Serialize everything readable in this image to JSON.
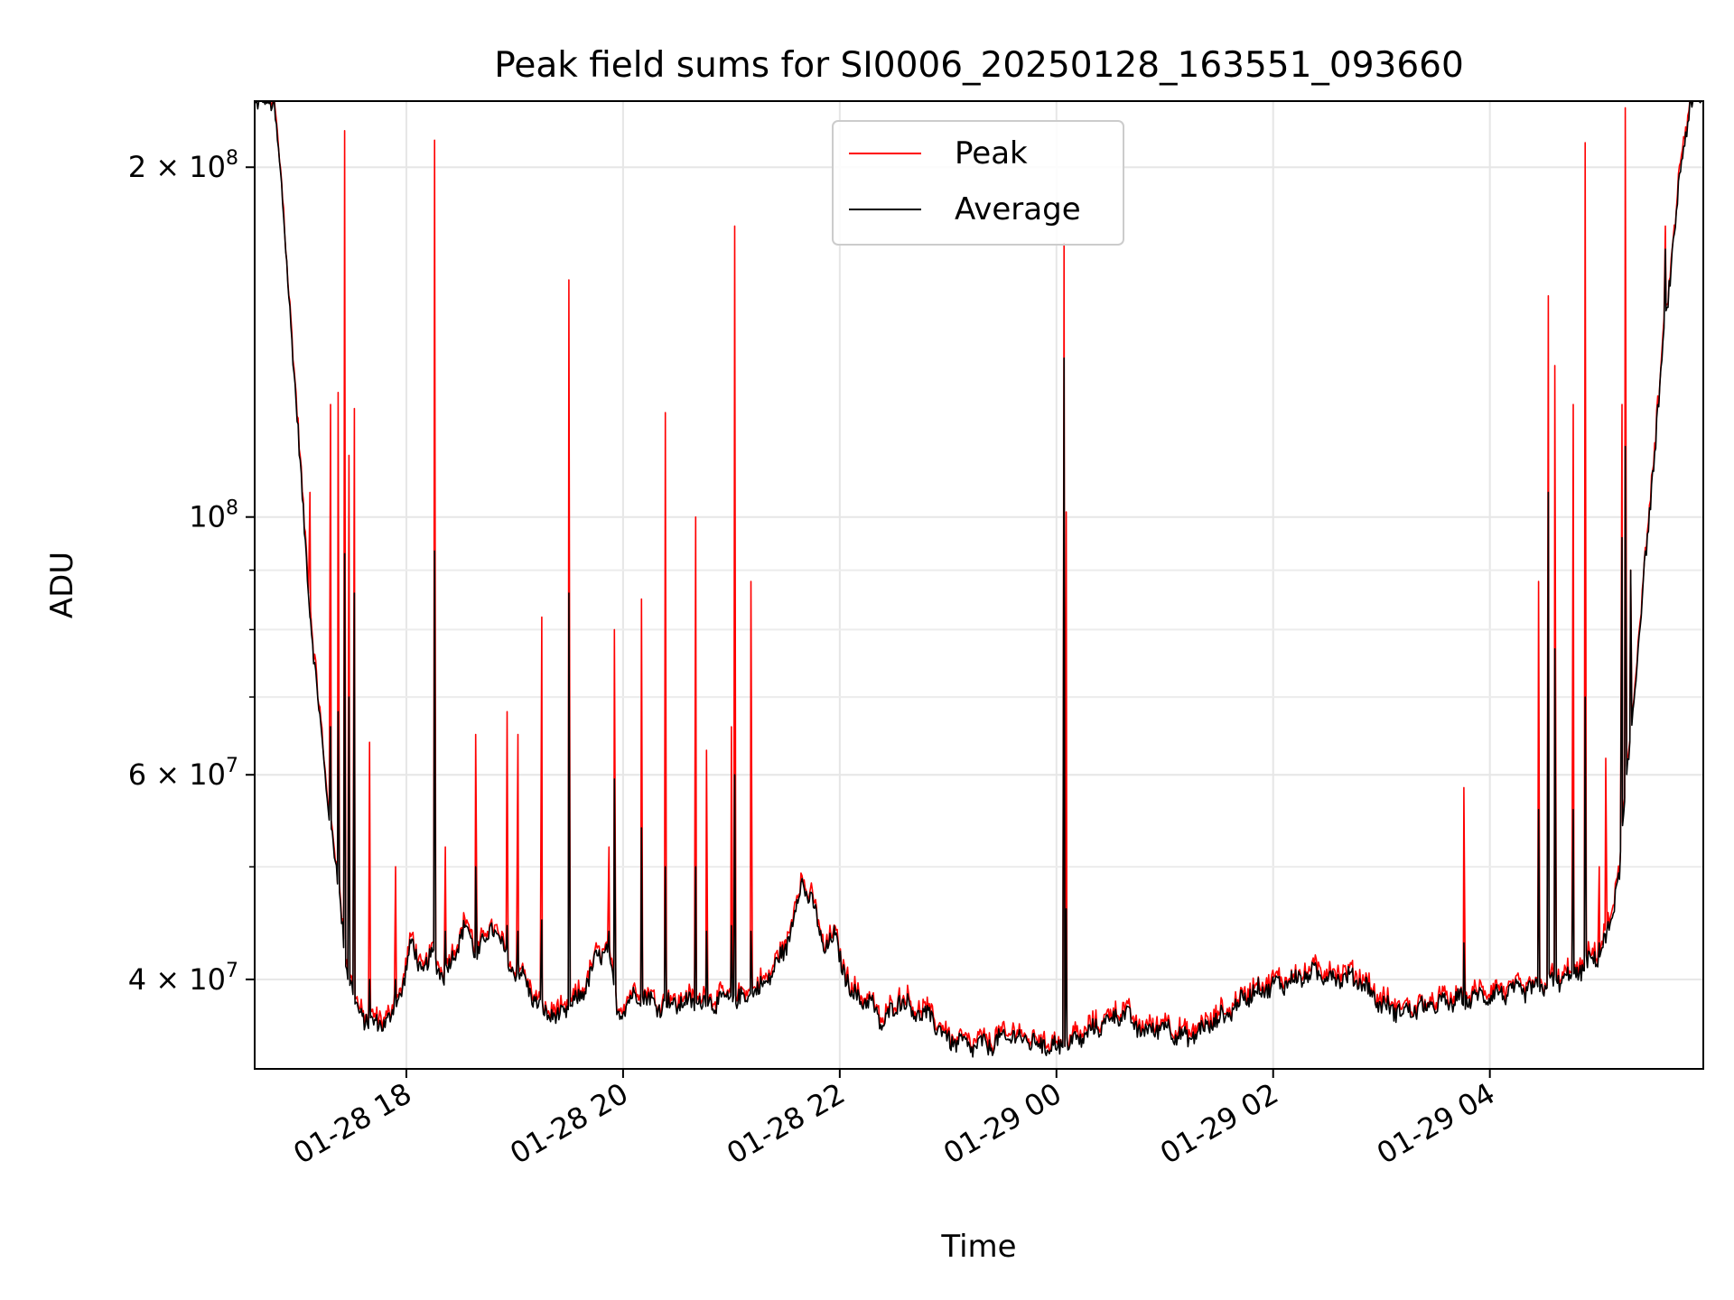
{
  "chart_data": {
    "type": "line",
    "title": "Peak field sums for SI0006_20250128_163551_093660",
    "xlabel": "Time",
    "ylabel": "ADU",
    "yscale": "log",
    "ylim": [
      33500000,
      228000000
    ],
    "xlim_hours": [
      16.6,
      29.97
    ],
    "grid": true,
    "legend_position": "top-center",
    "x_ticks": [
      {
        "hour": 18,
        "label": "01-28 18"
      },
      {
        "hour": 20,
        "label": "01-28 20"
      },
      {
        "hour": 22,
        "label": "01-28 22"
      },
      {
        "hour": 24,
        "label": "01-29 00"
      },
      {
        "hour": 26,
        "label": "01-29 02"
      },
      {
        "hour": 28,
        "label": "01-29 04"
      }
    ],
    "y_ticks": [
      {
        "value": 40000000,
        "mant": "4",
        "exp": "7"
      },
      {
        "value": 60000000,
        "mant": "6",
        "exp": "7"
      },
      {
        "value": 100000000,
        "mant": "",
        "exp": "8"
      },
      {
        "value": 200000000,
        "mant": "2",
        "exp": "8"
      }
    ],
    "y_minor_ticks": [
      50000000,
      70000000,
      80000000,
      90000000
    ],
    "series": [
      {
        "name": "Peak",
        "color": "#ff0000"
      },
      {
        "name": "Average",
        "color": "#000000"
      }
    ],
    "baseline": [
      [
        16.6,
        228000000
      ],
      [
        16.78,
        228000000
      ],
      [
        16.85,
        190000000
      ],
      [
        16.95,
        140000000
      ],
      [
        17.05,
        100000000
      ],
      [
        17.15,
        75000000
      ],
      [
        17.25,
        60000000
      ],
      [
        17.35,
        50000000
      ],
      [
        17.45,
        41000000
      ],
      [
        17.55,
        37500000
      ],
      [
        17.7,
        36500000
      ],
      [
        17.85,
        37000000
      ],
      [
        17.95,
        39000000
      ],
      [
        18.05,
        43000000
      ],
      [
        18.15,
        40500000
      ],
      [
        18.25,
        42000000
      ],
      [
        18.35,
        40000000
      ],
      [
        18.45,
        42500000
      ],
      [
        18.55,
        44500000
      ],
      [
        18.65,
        42000000
      ],
      [
        18.8,
        44500000
      ],
      [
        18.95,
        41000000
      ],
      [
        19.1,
        40000000
      ],
      [
        19.2,
        38000000
      ],
      [
        19.4,
        37000000
      ],
      [
        19.6,
        38500000
      ],
      [
        19.75,
        41500000
      ],
      [
        19.85,
        42500000
      ],
      [
        19.95,
        37500000
      ],
      [
        20.15,
        39000000
      ],
      [
        20.3,
        38000000
      ],
      [
        20.6,
        38200000
      ],
      [
        20.9,
        38300000
      ],
      [
        21.1,
        38500000
      ],
      [
        21.3,
        39500000
      ],
      [
        21.5,
        42500000
      ],
      [
        21.65,
        48500000
      ],
      [
        21.75,
        46500000
      ],
      [
        21.85,
        42500000
      ],
      [
        21.95,
        43500000
      ],
      [
        22.1,
        39000000
      ],
      [
        22.3,
        38000000
      ],
      [
        22.4,
        36500000
      ],
      [
        22.55,
        38500000
      ],
      [
        22.7,
        37500000
      ],
      [
        22.85,
        37000000
      ],
      [
        23.0,
        35500000
      ],
      [
        23.2,
        35000000
      ],
      [
        23.4,
        35200000
      ],
      [
        23.6,
        35800000
      ],
      [
        23.8,
        35200000
      ],
      [
        24.0,
        35000000
      ],
      [
        24.2,
        35500000
      ],
      [
        24.4,
        36500000
      ],
      [
        24.6,
        37500000
      ],
      [
        24.8,
        36000000
      ],
      [
        25.0,
        36500000
      ],
      [
        25.2,
        35500000
      ],
      [
        25.4,
        36500000
      ],
      [
        25.6,
        37500000
      ],
      [
        25.8,
        39000000
      ],
      [
        26.0,
        39500000
      ],
      [
        26.2,
        40000000
      ],
      [
        26.4,
        40500000
      ],
      [
        26.6,
        40200000
      ],
      [
        26.8,
        40000000
      ],
      [
        27.0,
        38000000
      ],
      [
        27.2,
        37500000
      ],
      [
        27.4,
        37800000
      ],
      [
        27.6,
        38200000
      ],
      [
        27.8,
        38500000
      ],
      [
        28.0,
        38800000
      ],
      [
        28.2,
        39000000
      ],
      [
        28.4,
        39200000
      ],
      [
        28.6,
        39800000
      ],
      [
        28.8,
        40500000
      ],
      [
        29.0,
        42000000
      ],
      [
        29.1,
        44000000
      ],
      [
        29.2,
        50000000
      ],
      [
        29.3,
        65000000
      ],
      [
        29.45,
        95000000
      ],
      [
        29.6,
        140000000
      ],
      [
        29.75,
        195000000
      ],
      [
        29.85,
        228000000
      ],
      [
        29.97,
        228000000
      ]
    ],
    "spikes": [
      {
        "hour": 17.11,
        "peak": 105000000,
        "avg": 82000000
      },
      {
        "hour": 17.3,
        "peak": 125000000,
        "avg": 66000000
      },
      {
        "hour": 17.37,
        "peak": 128000000,
        "avg": 68000000
      },
      {
        "hour": 17.43,
        "peak": 215000000,
        "avg": 93000000
      },
      {
        "hour": 17.47,
        "peak": 113000000,
        "avg": 70000000
      },
      {
        "hour": 17.52,
        "peak": 124000000,
        "avg": 86000000
      },
      {
        "hour": 17.66,
        "peak": 64000000,
        "avg": 40000000
      },
      {
        "hour": 17.9,
        "peak": 50000000,
        "avg": 40000000
      },
      {
        "hour": 18.26,
        "peak": 211000000,
        "avg": 93500000
      },
      {
        "hour": 18.36,
        "peak": 52000000,
        "avg": 44000000
      },
      {
        "hour": 18.64,
        "peak": 65000000,
        "avg": 50000000
      },
      {
        "hour": 18.93,
        "peak": 68000000,
        "avg": 44500000
      },
      {
        "hour": 19.03,
        "peak": 65000000,
        "avg": 44000000
      },
      {
        "hour": 19.25,
        "peak": 82000000,
        "avg": 45000000
      },
      {
        "hour": 19.5,
        "peak": 160000000,
        "avg": 86000000
      },
      {
        "hour": 19.87,
        "peak": 52000000,
        "avg": 44000000
      },
      {
        "hour": 19.92,
        "peak": 80000000,
        "avg": 59500000
      },
      {
        "hour": 20.17,
        "peak": 85000000,
        "avg": 54000000
      },
      {
        "hour": 20.39,
        "peak": 123000000,
        "avg": 50000000
      },
      {
        "hour": 20.67,
        "peak": 100000000,
        "avg": 50000000
      },
      {
        "hour": 20.77,
        "peak": 63000000,
        "avg": 44000000
      },
      {
        "hour": 21.0,
        "peak": 66000000,
        "avg": 44500000
      },
      {
        "hour": 21.03,
        "peak": 178000000,
        "avg": 60000000
      },
      {
        "hour": 21.18,
        "peak": 88000000,
        "avg": 44000000
      },
      {
        "hour": 24.07,
        "peak": 172000000,
        "avg": 137000000
      },
      {
        "hour": 24.09,
        "peak": 101000000,
        "avg": 46000000
      },
      {
        "hour": 27.76,
        "peak": 58500000,
        "avg": 43000000
      },
      {
        "hour": 28.45,
        "peak": 88000000,
        "avg": 56000000
      },
      {
        "hour": 28.54,
        "peak": 155000000,
        "avg": 105000000
      },
      {
        "hour": 28.6,
        "peak": 135000000,
        "avg": 77000000
      },
      {
        "hour": 28.77,
        "peak": 125000000,
        "avg": 56000000
      },
      {
        "hour": 28.88,
        "peak": 210000000,
        "avg": 70000000
      },
      {
        "hour": 29.01,
        "peak": 50000000,
        "avg": 43000000
      },
      {
        "hour": 29.07,
        "peak": 62000000,
        "avg": 43000000
      },
      {
        "hour": 29.22,
        "peak": 125000000,
        "avg": 96000000
      },
      {
        "hour": 29.25,
        "peak": 225000000,
        "avg": 115000000
      },
      {
        "hour": 29.3,
        "peak": 90000000,
        "avg": 90000000
      },
      {
        "hour": 29.62,
        "peak": 178000000,
        "avg": 170000000
      }
    ]
  }
}
